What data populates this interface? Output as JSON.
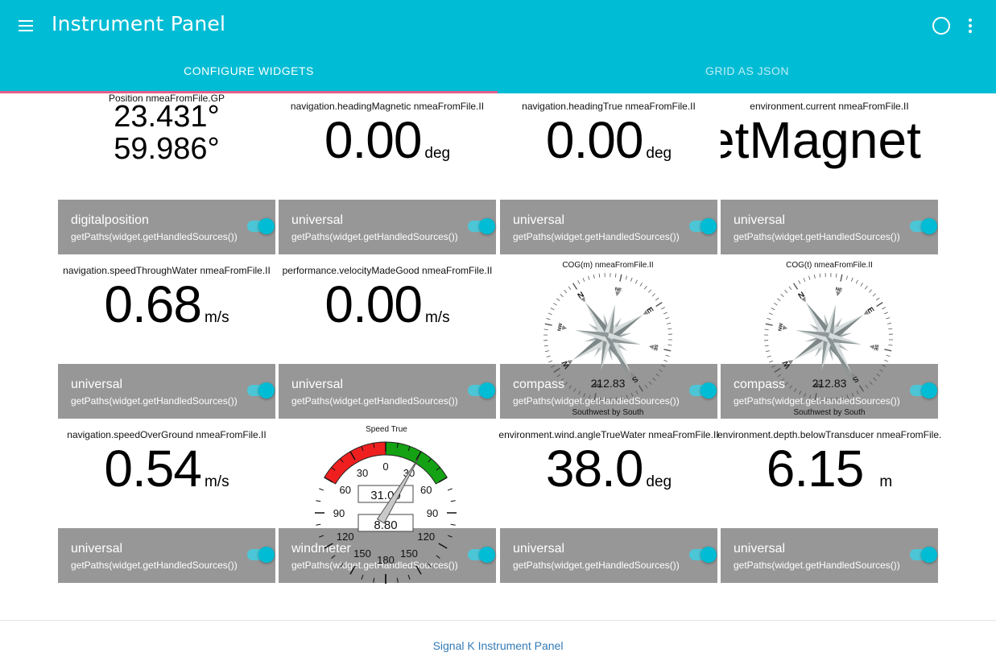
{
  "appbar": {
    "title": "Instrument Panel",
    "primary_color": "#00bcd4"
  },
  "tabs": [
    {
      "label": "CONFIGURE WIDGETS",
      "active": true
    },
    {
      "label": "GRID AS JSON",
      "active": false
    }
  ],
  "widgets": [
    {
      "head": "Position nmeaFromFile.GP",
      "lat": "23.431°",
      "lon": "59.986°",
      "type": "digitalposition",
      "paths": "getPaths(widget.getHandledSources())"
    },
    {
      "head": "navigation.headingMagnetic nmeaFromFile.II",
      "value": "0.00",
      "unit": "deg",
      "type": "universal",
      "paths": "getPaths(widget.getHandledSources())"
    },
    {
      "head": "navigation.headingTrue nmeaFromFile.II",
      "value": "0.00",
      "unit": "deg",
      "type": "universal",
      "paths": "getPaths(widget.getHandledSources())"
    },
    {
      "head": "environment.current nmeaFromFile.II",
      "value": "setMagnet",
      "unit": "",
      "type": "universal",
      "paths": "getPaths(widget.getHandledSources())"
    },
    {
      "head": "navigation.speedThroughWater nmeaFromFile.II",
      "value": "0.68",
      "unit": "m/s",
      "type": "universal",
      "paths": "getPaths(widget.getHandledSources())"
    },
    {
      "head": "performance.velocityMadeGood nmeaFromFile.II",
      "value": "0.00",
      "unit": "m/s",
      "type": "universal",
      "paths": "getPaths(widget.getHandledSources())"
    },
    {
      "head": "COG(m) nmeaFromFile.II",
      "value": "212.83",
      "direction": "Southwest by South",
      "type": "compass",
      "paths": "getPaths(widget.getHandledSources())"
    },
    {
      "head": "COG(t) nmeaFromFile.II",
      "value": "212.83",
      "direction": "Southwest by South",
      "type": "compass",
      "paths": "getPaths(widget.getHandledSources())"
    },
    {
      "head": "navigation.speedOverGround nmeaFromFile.II",
      "value": "0.54",
      "unit": "m/s",
      "type": "universal",
      "paths": "getPaths(widget.getHandledSources())"
    },
    {
      "head": "Speed True",
      "angle": "31.00",
      "speed": "8.80",
      "type": "windmeter",
      "paths": "getPaths(widget.getHandledSources())"
    },
    {
      "head": "environment.wind.angleTrueWater nmeaFromFile.II",
      "value": "38.0",
      "unit": "deg",
      "type": "universal",
      "paths": "getPaths(widget.getHandledSources())"
    },
    {
      "head": "environment.depth.belowTransducer nmeaFromFile.II",
      "value": "6.15",
      "unit": "m",
      "type": "universal",
      "paths": "getPaths(widget.getHandledSources())"
    }
  ],
  "compass": {
    "labels": [
      "S",
      "SW",
      "W",
      "NW",
      "N",
      "NE",
      "E",
      "SE"
    ],
    "heading_deg": 212.83
  },
  "windmeter": {
    "left_labels": [
      "30",
      "60",
      "90",
      "120",
      "150"
    ],
    "right_labels": [
      "30",
      "60",
      "90",
      "120",
      "150"
    ],
    "top_label": "0",
    "bottom_label": "180",
    "angle_deg": 31
  },
  "footer": {
    "link": "Signal K Instrument Panel"
  }
}
